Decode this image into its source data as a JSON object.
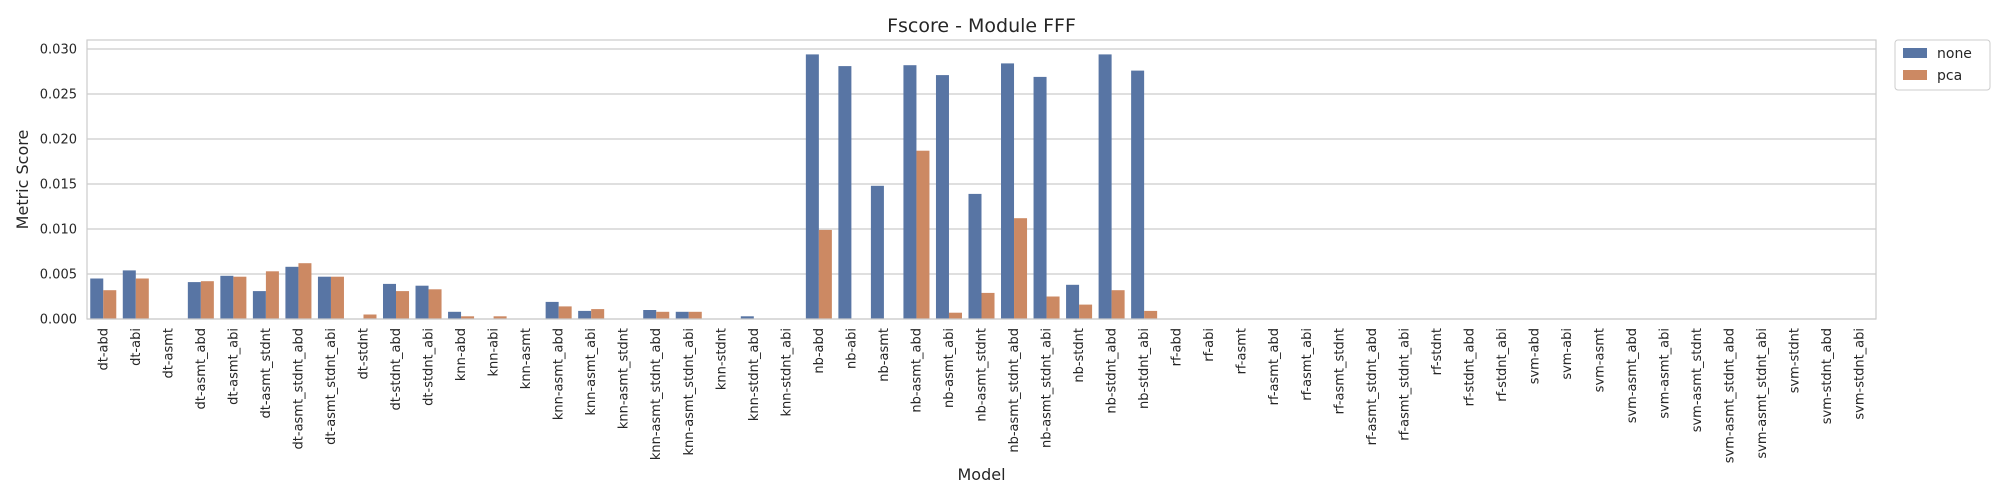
{
  "chart_data": {
    "type": "bar",
    "title": "Fscore - Module FFF",
    "xlabel": "Model",
    "ylabel": "Metric Score",
    "ylim": [
      0,
      0.031
    ],
    "yticks": [
      "0.000",
      "0.005",
      "0.010",
      "0.015",
      "0.020",
      "0.025",
      "0.030"
    ],
    "grid": "horizontal",
    "legend_position": "outside upper right",
    "categories": [
      "dt-abd",
      "dt-abi",
      "dt-asmt",
      "dt-asmt_abd",
      "dt-asmt_abi",
      "dt-asmt_stdnt",
      "dt-asmt_stdnt_abd",
      "dt-asmt_stdnt_abi",
      "dt-stdnt",
      "dt-stdnt_abd",
      "dt-stdnt_abi",
      "knn-abd",
      "knn-abi",
      "knn-asmt",
      "knn-asmt_abd",
      "knn-asmt_abi",
      "knn-asmt_stdnt",
      "knn-asmt_stdnt_abd",
      "knn-asmt_stdnt_abi",
      "knn-stdnt",
      "knn-stdnt_abd",
      "knn-stdnt_abi",
      "nb-abd",
      "nb-abi",
      "nb-asmt",
      "nb-asmt_abd",
      "nb-asmt_abi",
      "nb-asmt_stdnt",
      "nb-asmt_stdnt_abd",
      "nb-asmt_stdnt_abi",
      "nb-stdnt",
      "nb-stdnt_abd",
      "nb-stdnt_abi",
      "rf-abd",
      "rf-abi",
      "rf-asmt",
      "rf-asmt_abd",
      "rf-asmt_abi",
      "rf-asmt_stdnt",
      "rf-asmt_stdnt_abd",
      "rf-asmt_stdnt_abi",
      "rf-stdnt",
      "rf-stdnt_abd",
      "rf-stdnt_abi",
      "svm-abd",
      "svm-abi",
      "svm-asmt",
      "svm-asmt_abd",
      "svm-asmt_abi",
      "svm-asmt_stdnt",
      "svm-asmt_stdnt_abd",
      "svm-asmt_stdnt_abi",
      "svm-stdnt",
      "svm-stdnt_abd",
      "svm-stdnt_abi"
    ],
    "series": [
      {
        "name": "none",
        "color": "#5875a4",
        "values": [
          0.0045,
          0.0054,
          0,
          0.0041,
          0.0048,
          0.0031,
          0.0058,
          0.0047,
          0,
          0.0039,
          0.0037,
          0.0008,
          0,
          0,
          0.0019,
          0.0009,
          0,
          0.001,
          0.0008,
          0,
          0.0003,
          0,
          0.0294,
          0.0281,
          0.0148,
          0.0282,
          0.0271,
          0.0139,
          0.0284,
          0.0269,
          0.0038,
          0.0294,
          0.0276,
          0,
          0,
          0,
          0,
          0,
          0,
          0,
          0,
          0,
          0,
          0,
          0,
          0,
          0,
          0,
          0,
          0,
          0,
          0,
          0,
          0,
          0
        ]
      },
      {
        "name": "pca",
        "color": "#cc8963",
        "values": [
          0.0032,
          0.0045,
          0,
          0.0042,
          0.0047,
          0.0053,
          0.0062,
          0.0047,
          0.0005,
          0.0031,
          0.0033,
          0.0003,
          0.0003,
          0,
          0.0014,
          0.0011,
          0,
          0.0008,
          0.0008,
          0,
          0,
          0,
          0.0099,
          0,
          0,
          0.0187,
          0.0007,
          0.0029,
          0.0112,
          0.0025,
          0.0016,
          0.0032,
          0.0009,
          0,
          0,
          0,
          0,
          0,
          0,
          0,
          0,
          0,
          0,
          0,
          0,
          0,
          0,
          0,
          0,
          0,
          0,
          0,
          0,
          0,
          0
        ]
      }
    ]
  }
}
